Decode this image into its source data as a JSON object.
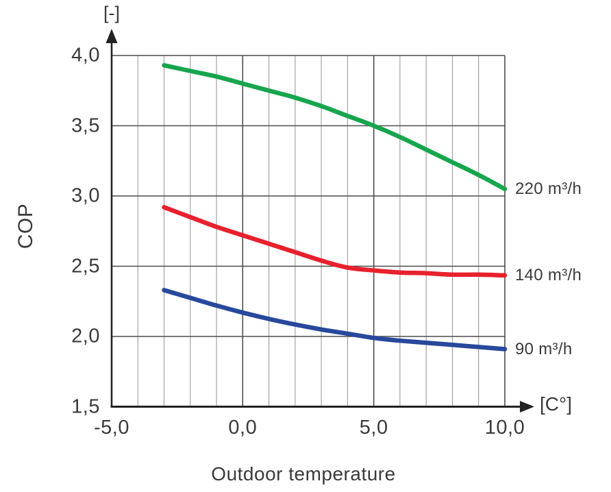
{
  "chart_data": {
    "type": "line",
    "title": "",
    "xlabel": "Outdoor temperature",
    "xunit": "[C°]",
    "ylabel": "COP",
    "yunit": "[-]",
    "xlim": [
      -5,
      10
    ],
    "ylim": [
      1.5,
      4.0
    ],
    "grid": "on",
    "legend_position": "right-of-curve-end",
    "decimal_separator": ",",
    "x_ticks": [
      {
        "value": -5,
        "label": "-5,0"
      },
      {
        "value": 0,
        "label": "0,0"
      },
      {
        "value": 5,
        "label": "5,0"
      },
      {
        "value": 10,
        "label": "10,0"
      }
    ],
    "y_ticks": [
      {
        "value": 4.0,
        "label": "4,0"
      },
      {
        "value": 3.5,
        "label": "3,5"
      },
      {
        "value": 3.0,
        "label": "3,0"
      },
      {
        "value": 2.5,
        "label": "2,5"
      },
      {
        "value": 2.0,
        "label": "2,0"
      },
      {
        "value": 1.5,
        "label": "1,5"
      }
    ],
    "x_minor_step": 1,
    "y_grid_step": 0.5,
    "x_major_values": [
      0,
      5
    ],
    "series": [
      {
        "name": "220 m³/h",
        "color": "#17a54d",
        "points": [
          [
            -3,
            3.93
          ],
          [
            -2,
            3.89
          ],
          [
            -1,
            3.85
          ],
          [
            0,
            3.8
          ],
          [
            1,
            3.75
          ],
          [
            2,
            3.7
          ],
          [
            3,
            3.64
          ],
          [
            4,
            3.57
          ],
          [
            5,
            3.5
          ],
          [
            6,
            3.42
          ],
          [
            7,
            3.33
          ],
          [
            8,
            3.24
          ],
          [
            9,
            3.15
          ],
          [
            10,
            3.05
          ]
        ]
      },
      {
        "name": "140 m³/h",
        "color": "#e8212d",
        "points": [
          [
            -3,
            2.92
          ],
          [
            -2,
            2.85
          ],
          [
            -1,
            2.78
          ],
          [
            0,
            2.72
          ],
          [
            1,
            2.66
          ],
          [
            2,
            2.6
          ],
          [
            3,
            2.54
          ],
          [
            4,
            2.49
          ],
          [
            5,
            2.47
          ],
          [
            6,
            2.455
          ],
          [
            7,
            2.45
          ],
          [
            8,
            2.44
          ],
          [
            9,
            2.44
          ],
          [
            10,
            2.435
          ]
        ]
      },
      {
        "name": "90 m³/h",
        "color": "#27489b",
        "points": [
          [
            -3,
            2.33
          ],
          [
            -2,
            2.275
          ],
          [
            -1,
            2.22
          ],
          [
            0,
            2.17
          ],
          [
            1,
            2.125
          ],
          [
            2,
            2.085
          ],
          [
            3,
            2.05
          ],
          [
            4,
            2.02
          ],
          [
            5,
            1.99
          ],
          [
            6,
            1.97
          ],
          [
            7,
            1.955
          ],
          [
            8,
            1.94
          ],
          [
            9,
            1.925
          ],
          [
            10,
            1.91
          ]
        ]
      }
    ]
  },
  "colors": {
    "axis": "#222222",
    "grid_minor": "#9a9a9a",
    "grid_major": "#4c4c4c",
    "text": "#3a3a3a",
    "background": "#ffffff"
  }
}
